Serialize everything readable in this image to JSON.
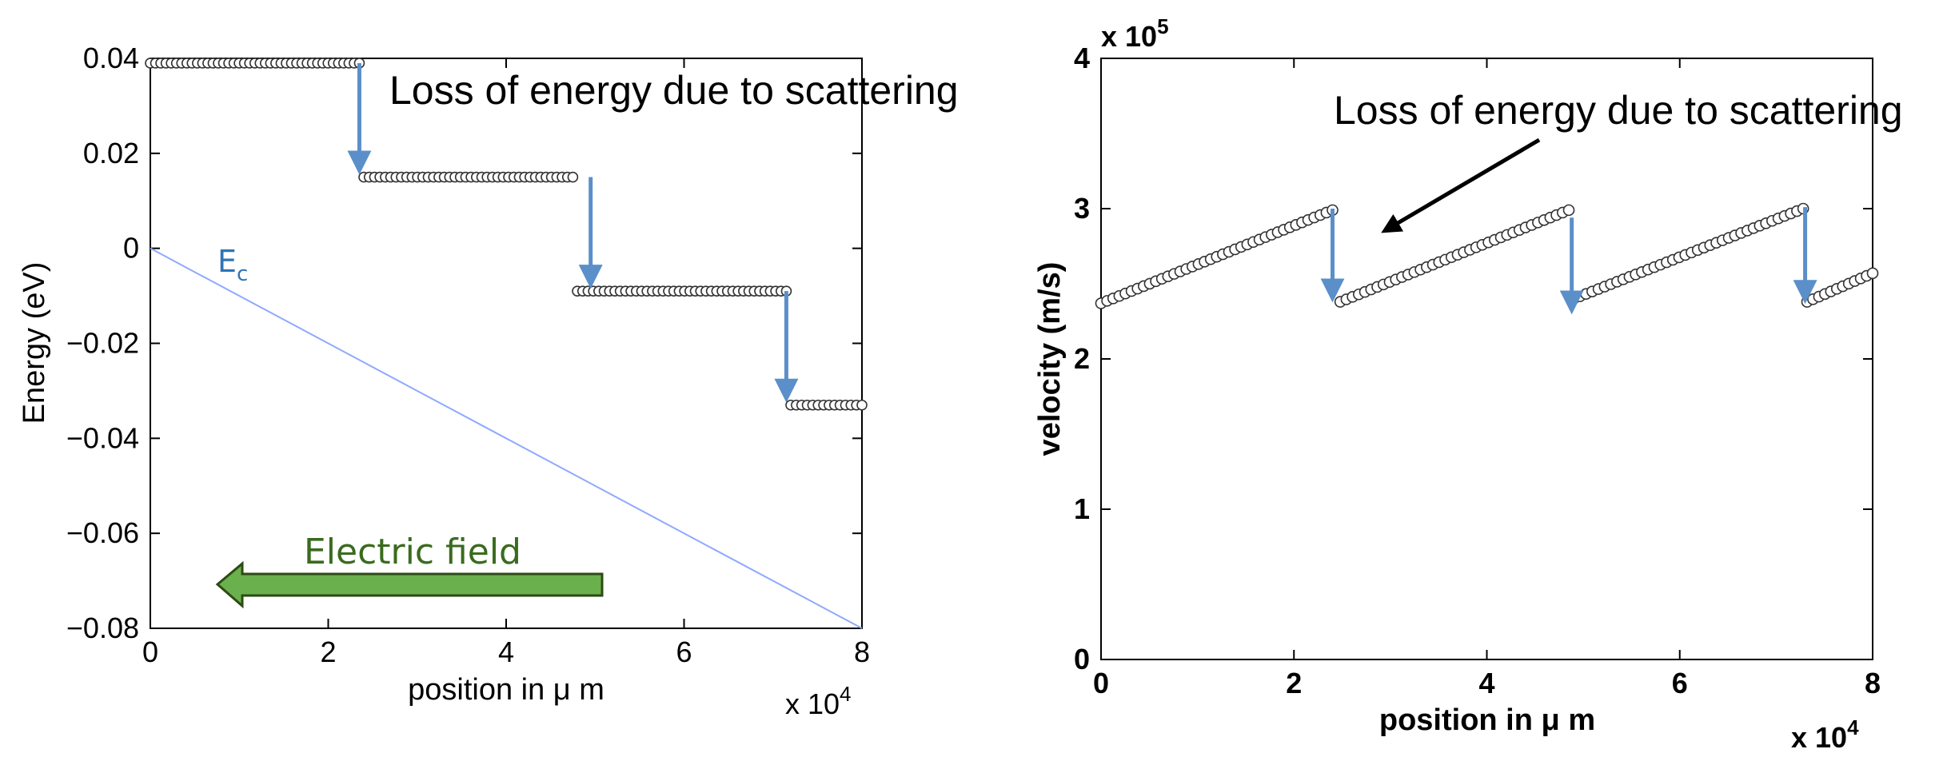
{
  "chart_data": [
    {
      "type": "scatter",
      "ylabel": "Energy (eV)",
      "xlabel": "position in μ m",
      "x_multiplier": "x 10",
      "x_multiplier_exp": "4",
      "xlim": [
        0,
        80000
      ],
      "ylim": [
        -0.08,
        0.04
      ],
      "xticks": [
        0,
        20000,
        40000,
        60000,
        80000
      ],
      "xtick_labels": [
        "0",
        "2",
        "4",
        "6",
        "8"
      ],
      "yticks": [
        -0.08,
        -0.06,
        -0.04,
        -0.02,
        0,
        0.02,
        0.04
      ],
      "ytick_labels": [
        "−0.08",
        "−0.06",
        "−0.04",
        "−0.02",
        "0",
        "0.02",
        "0.04"
      ],
      "series": [
        {
          "style": "markers",
          "segments": [
            {
              "x_start": 0,
              "x_end": 23500,
              "y": 0.039,
              "n": 41
            },
            {
              "x_start": 24000,
              "x_end": 47500,
              "y": 0.015,
              "n": 40
            },
            {
              "x_start": 48000,
              "x_end": 71500,
              "y": -0.009,
              "n": 40
            },
            {
              "x_start": 72000,
              "x_end": 80000,
              "y": -0.033,
              "n": 14
            }
          ]
        },
        {
          "style": "line",
          "color": "#8fa9ff",
          "x": [
            0,
            80000
          ],
          "y": [
            0,
            -0.08
          ]
        }
      ],
      "ec_label": "E",
      "ec_sub": "c",
      "annotation": "Loss of energy due to scattering",
      "field_label": "Electric field",
      "drops": [
        {
          "x": 23500,
          "y_from": 0.039,
          "y_to": 0.015
        },
        {
          "x": 49500,
          "y_from": 0.015,
          "y_to": -0.009
        },
        {
          "x": 71500,
          "y_from": -0.009,
          "y_to": -0.033
        }
      ],
      "grid": false
    },
    {
      "type": "scatter",
      "ylabel": "velocity (m/s)",
      "xlabel": "position in μ m",
      "x_multiplier": "x 10",
      "x_multiplier_exp": "4",
      "y_multiplier": "x 10",
      "y_multiplier_exp": "5",
      "xlim": [
        0,
        80000
      ],
      "ylim": [
        0,
        400000
      ],
      "xticks": [
        0,
        20000,
        40000,
        60000,
        80000
      ],
      "xtick_labels": [
        "0",
        "2",
        "4",
        "6",
        "8"
      ],
      "yticks": [
        0,
        100000,
        200000,
        300000,
        400000
      ],
      "ytick_labels": [
        "0",
        "1",
        "2",
        "3",
        "4"
      ],
      "series": [
        {
          "style": "markers",
          "segments": [
            {
              "x_start": 0,
              "x_end": 24000,
              "y_start": 237000,
              "y_end": 299000,
              "n": 39
            },
            {
              "x_start": 24800,
              "x_end": 48500,
              "y_start": 238000,
              "y_end": 299000,
              "n": 38
            },
            {
              "x_start": 49000,
              "x_end": 72800,
              "y_start": 240000,
              "y_end": 300000,
              "n": 38
            },
            {
              "x_start": 73200,
              "x_end": 80000,
              "y_start": 238000,
              "y_end": 257000,
              "n": 12
            }
          ]
        }
      ],
      "annotation": "Loss of energy due to scattering",
      "drops": [
        {
          "x": 24000,
          "y_from": 300000,
          "y_to": 236000
        },
        {
          "x": 48800,
          "y_from": 294000,
          "y_to": 228000
        },
        {
          "x": 73000,
          "y_from": 301000,
          "y_to": 235000
        }
      ],
      "grid": false
    }
  ],
  "colors": {
    "drop_arrow": "#5b8fc9",
    "field_arrow_fill": "#6ab04c",
    "field_arrow_stroke": "#2d4a14",
    "ec_line": "#8fa9ff",
    "marker_stroke": "#333333"
  }
}
